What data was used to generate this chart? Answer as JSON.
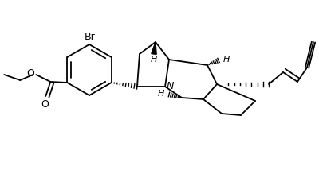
{
  "background_color": "#ffffff",
  "line_color": "#000000",
  "text_color": "#000000",
  "figsize": [
    4.0,
    2.43
  ],
  "dpi": 100,
  "br_label": "Br",
  "n_label": "N",
  "h_label": "H",
  "o_label": "O"
}
